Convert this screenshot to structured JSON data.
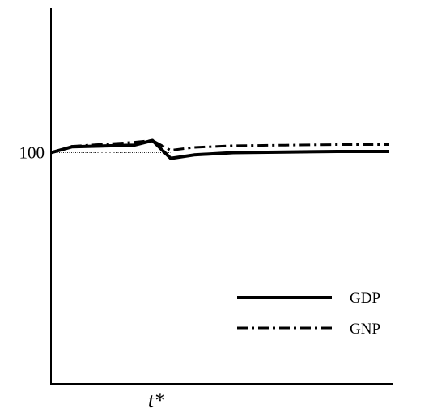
{
  "chart_data": {
    "type": "line",
    "title": "",
    "xlabel": "t*",
    "ylabel": "",
    "xlim": [
      0,
      13
    ],
    "ylim": [
      60,
      125
    ],
    "yticks": [
      {
        "value": 100,
        "label": "100"
      }
    ],
    "reference_line": {
      "y": 100,
      "style": "dotted",
      "x_range": [
        0,
        4.6
      ]
    },
    "grid": false,
    "legend_position": "bottom-right",
    "series": [
      {
        "name": "GDP",
        "style": "solid",
        "color": "#000000",
        "x": [
          0,
          0.8,
          3.2,
          3.9,
          4.6,
          5.5,
          7.0,
          9.0,
          11.0,
          13.0
        ],
        "y": [
          100,
          101.0,
          101.3,
          102.1,
          99.0,
          99.6,
          100.0,
          100.1,
          100.2,
          100.2
        ]
      },
      {
        "name": "GNP",
        "style": "dash-dot",
        "color": "#000000",
        "x": [
          0,
          0.8,
          3.2,
          3.9,
          4.6,
          5.5,
          7.0,
          9.0,
          11.0,
          13.0
        ],
        "y": [
          100,
          101.1,
          101.8,
          102.1,
          100.4,
          100.9,
          101.2,
          101.3,
          101.4,
          101.4
        ]
      }
    ]
  }
}
